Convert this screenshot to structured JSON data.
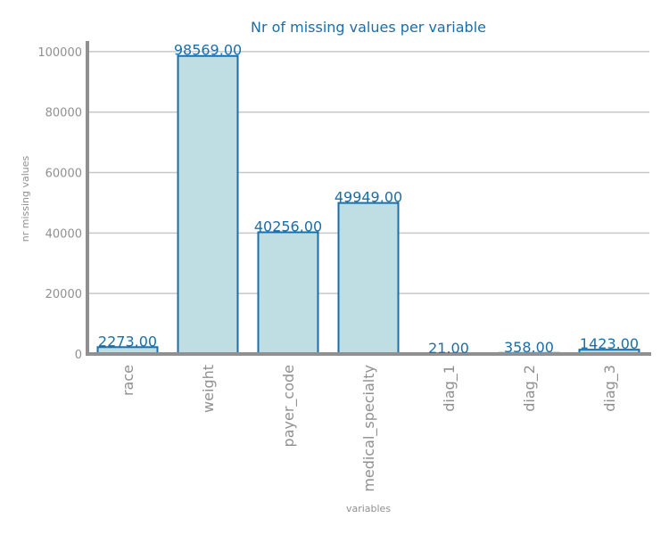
{
  "chart_data": {
    "type": "bar",
    "title": "Nr of missing values per variable",
    "xlabel": "variables",
    "ylabel": "nr missing values",
    "categories": [
      "race",
      "weight",
      "payer_code",
      "medical_specialty",
      "diag_1",
      "diag_2",
      "diag_3"
    ],
    "values": [
      2273,
      98569,
      40256,
      49949,
      21,
      358,
      1423
    ],
    "value_labels": [
      "2273.00",
      "98569.00",
      "40256.00",
      "49949.00",
      "21.00",
      "358.00",
      "1423.00"
    ],
    "yticks": [
      0,
      20000,
      40000,
      60000,
      80000,
      100000
    ],
    "ytick_labels": [
      "0",
      "20000",
      "40000",
      "60000",
      "80000",
      "100000"
    ],
    "ylim": [
      0,
      103500
    ],
    "grid": "horizontal",
    "colors": {
      "bar_fill": "#bfdee3",
      "bar_edge": "#1a6fa8",
      "title": "#1a6fa8",
      "data_label": "#1a6fa8",
      "tick": "#909090",
      "axis": "#909090",
      "grid": "#c8c8c8"
    }
  }
}
